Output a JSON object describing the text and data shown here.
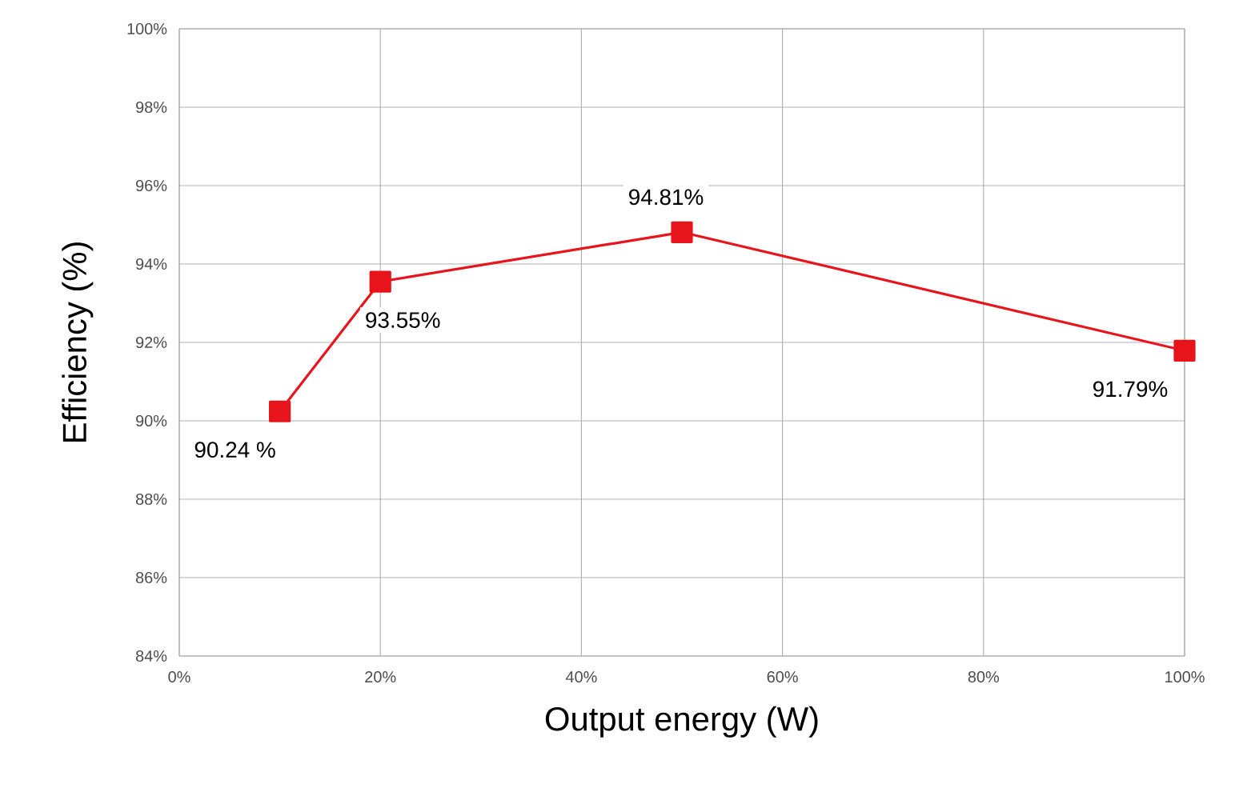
{
  "chart_data": {
    "type": "line",
    "xlabel": "Output energy (W)",
    "ylabel": "Efficiency (%)",
    "x": [
      10,
      20,
      50,
      100
    ],
    "series": [
      {
        "color": "#e8141b",
        "values": [
          90.24,
          93.55,
          94.81,
          91.79
        ],
        "value_labels": [
          "90.24 %",
          "93.55%",
          "94.81%",
          "91.79%"
        ]
      }
    ],
    "xlim": [
      0,
      100
    ],
    "ylim": [
      84,
      100
    ],
    "xticks": [
      {
        "value": 0,
        "label": "0%"
      },
      {
        "value": 20,
        "label": "20%"
      },
      {
        "value": 40,
        "label": "40%"
      },
      {
        "value": 60,
        "label": "60%"
      },
      {
        "value": 80,
        "label": "80%"
      },
      {
        "value": 100,
        "label": "100%"
      }
    ],
    "yticks": [
      {
        "value": 84,
        "label": "84%"
      },
      {
        "value": 86,
        "label": "86%"
      },
      {
        "value": 88,
        "label": "88%"
      },
      {
        "value": 90,
        "label": "90%"
      },
      {
        "value": 92,
        "label": "92%"
      },
      {
        "value": 94,
        "label": "94%"
      },
      {
        "value": 96,
        "label": "96%"
      },
      {
        "value": 98,
        "label": "98%"
      },
      {
        "value": 100,
        "label": "100%"
      }
    ],
    "grid": true,
    "marker": "square",
    "line_style": "solid"
  }
}
